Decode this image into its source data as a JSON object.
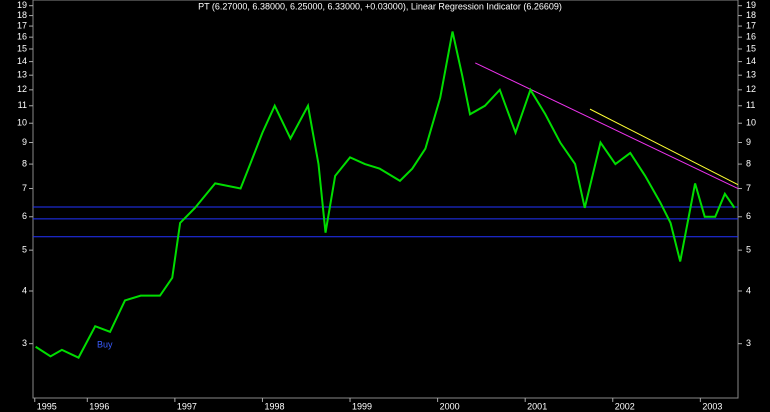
{
  "chart_data": {
    "type": "line",
    "title": "PT (6.27000, 6.38000, 6.25000, 6.33000, +0.03000), Linear Regression Indicator (6.26609)",
    "log_y": true,
    "x": [
      1995.41,
      1995.58,
      1995.71,
      1995.9,
      1996.09,
      1996.26,
      1996.43,
      1996.61,
      1996.83,
      1996.97,
      1997.06,
      1997.23,
      1997.46,
      1997.75,
      1997.86,
      1998.0,
      1998.14,
      1998.32,
      1998.52,
      1998.64,
      1998.72,
      1998.83,
      1999.0,
      1999.17,
      1999.34,
      1999.57,
      1999.71,
      1999.86,
      2000.03,
      2000.17,
      2000.28,
      2000.37,
      2000.54,
      2000.71,
      2000.89,
      2001.06,
      2001.23,
      2001.4,
      2001.57,
      2001.68,
      2001.86,
      2002.03,
      2002.2,
      2002.37,
      2002.54,
      2002.66,
      2002.77,
      2002.94,
      2003.05,
      2003.17,
      2003.28,
      2003.39
    ],
    "series": [
      {
        "name": "PT",
        "color": "#00dd00",
        "values": [
          2.95,
          2.8,
          2.9,
          2.78,
          3.3,
          3.2,
          3.8,
          3.9,
          3.9,
          4.3,
          5.8,
          6.3,
          7.2,
          7.0,
          8.0,
          9.5,
          11.0,
          9.2,
          11.0,
          8.0,
          5.5,
          7.5,
          8.3,
          8.0,
          7.8,
          7.3,
          7.8,
          8.7,
          11.5,
          16.5,
          13.0,
          10.5,
          11.0,
          12.0,
          9.5,
          12.0,
          10.5,
          9.0,
          8.0,
          6.3,
          9.0,
          8.0,
          8.5,
          7.5,
          6.5,
          5.8,
          4.7,
          7.2,
          6.0,
          6.0,
          6.8,
          6.3
        ]
      }
    ],
    "levels": {
      "color": "#2233ff",
      "values": [
        6.33,
        5.93,
        5.38
      ]
    },
    "trendlines": [
      {
        "color": "#ee33ee",
        "x": [
          2000.43,
          2003.43
        ],
        "values": [
          13.9,
          7.0
        ]
      },
      {
        "color": "#ffff33",
        "x": [
          2001.74,
          2003.43
        ],
        "values": [
          10.8,
          7.15
        ]
      }
    ],
    "annotation": {
      "text": "Buy",
      "x": 1996.2,
      "y": 2.98
    },
    "xlim": [
      1995.38,
      2003.43
    ],
    "xticks": [
      {
        "value": 1995.4,
        "label": "1995"
      },
      1996,
      1997,
      1998,
      1999,
      2000,
      2001,
      2002,
      2003
    ],
    "ylim": [
      2.23,
      19.6
    ],
    "yticks": [
      3,
      4,
      5,
      6,
      7,
      8,
      9,
      10,
      11,
      12,
      13,
      14,
      15,
      16,
      17,
      18,
      19
    ]
  }
}
